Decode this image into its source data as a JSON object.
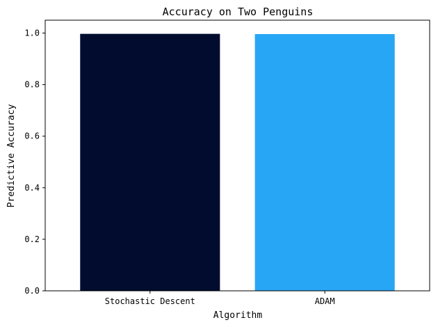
{
  "chart_data": {
    "type": "bar",
    "title": "Accuracy on Two Penguins",
    "xlabel": "Algorithm",
    "ylabel": "Predictive Accuracy",
    "categories": [
      "Stochastic Descent",
      "ADAM"
    ],
    "values": [
      0.997,
      0.996
    ],
    "colors": [
      "#020c2e",
      "#27a6f5"
    ],
    "ylim": [
      0,
      1.05
    ],
    "yticks": [
      0.0,
      0.2,
      0.4,
      0.6,
      0.8,
      1.0
    ],
    "ytick_labels": [
      "0.0",
      "0.2",
      "0.4",
      "0.6",
      "0.8",
      "1.0"
    ],
    "grid": false,
    "legend": "none"
  }
}
